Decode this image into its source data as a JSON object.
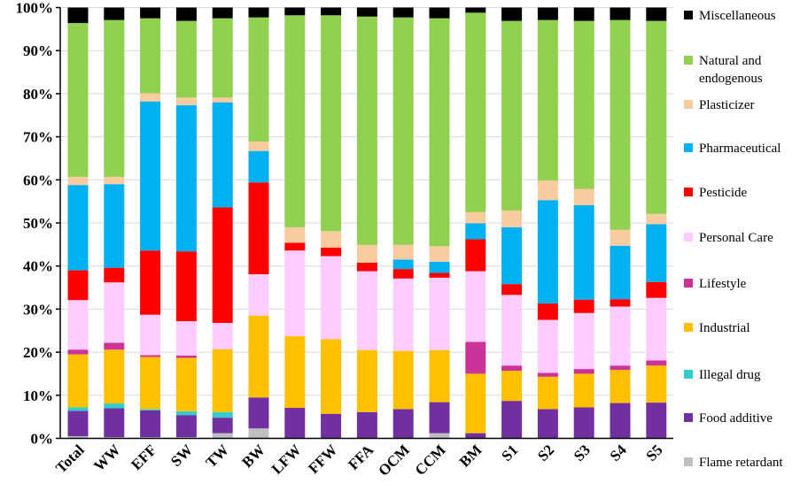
{
  "chart_data": {
    "type": "bar",
    "stacked": true,
    "normalized": true,
    "title": "",
    "xlabel": "",
    "ylabel": "",
    "ylim": [
      0,
      100
    ],
    "yticks": [
      "0%",
      "10%",
      "20%",
      "30%",
      "40%",
      "50%",
      "60%",
      "70%",
      "80%",
      "90%",
      "100%"
    ],
    "grid": true,
    "legend_position": "right",
    "categories": [
      "Total",
      "WW",
      "EFF",
      "SW",
      "TW",
      "BW",
      "LFW",
      "FFW",
      "FFA",
      "OCM",
      "CCM",
      "BM",
      "S1",
      "S2",
      "S3",
      "S4",
      "S5"
    ],
    "series": [
      {
        "name": "Flame retardant",
        "color": "#bfbfbf",
        "values": [
          0.5,
          0.3,
          0.3,
          0.3,
          1.2,
          2.3,
          0,
          0,
          0,
          0,
          1.2,
          0,
          0,
          0,
          0,
          0,
          0
        ]
      },
      {
        "name": "Food additive",
        "color": "#7030a0",
        "values": [
          5.9,
          6.7,
          6.2,
          5.1,
          3.6,
          7.2,
          7.1,
          5.7,
          6.1,
          6.8,
          7.2,
          1.2,
          8.7,
          6.8,
          7.2,
          8.2,
          8.3
        ]
      },
      {
        "name": "Illegal drug",
        "color": "#33cccc",
        "values": [
          0.8,
          1.1,
          0.3,
          0.9,
          1.3,
          0,
          0,
          0,
          0,
          0,
          0,
          0,
          0,
          0,
          0,
          0,
          0
        ]
      },
      {
        "name": "Industrial",
        "color": "#ffc000",
        "values": [
          12.3,
          12.5,
          12.1,
          12.4,
          14.6,
          19.0,
          16.6,
          17.3,
          14.4,
          13.5,
          12.1,
          13.8,
          7.0,
          7.5,
          7.8,
          7.7,
          8.6
        ]
      },
      {
        "name": "Lifestyle",
        "color": "#cc3399",
        "values": [
          1.1,
          1.6,
          0.4,
          0.5,
          0,
          0,
          0,
          0,
          0,
          0,
          0,
          7.4,
          1.2,
          0.9,
          1.1,
          1.0,
          1.2
        ]
      },
      {
        "name": "Personal Care",
        "color": "#ffccff",
        "values": [
          11.5,
          14.0,
          9.4,
          8.0,
          6.1,
          9.6,
          19.9,
          19.3,
          18.3,
          16.8,
          16.8,
          16.4,
          16.4,
          12.3,
          13.0,
          13.7,
          14.5
        ]
      },
      {
        "name": "Pesticide",
        "color": "#ff0000",
        "values": [
          6.9,
          3.4,
          14.9,
          16.2,
          26.8,
          21.3,
          1.8,
          2.0,
          2.0,
          2.2,
          1.1,
          7.4,
          2.5,
          3.8,
          3.1,
          1.7,
          3.7
        ]
      },
      {
        "name": "Pharmaceutical",
        "color": "#00b0f0",
        "values": [
          19.8,
          19.4,
          34.6,
          33.9,
          24.4,
          7.3,
          0,
          0,
          0,
          2.2,
          2.6,
          3.7,
          13.2,
          24.0,
          21.9,
          12.4,
          13.4
        ]
      },
      {
        "name": "Plasticizer",
        "color": "#f8cba0",
        "values": [
          1.9,
          1.7,
          1.9,
          1.8,
          1.1,
          2.2,
          3.6,
          3.8,
          4.1,
          3.4,
          3.6,
          2.6,
          3.9,
          4.5,
          3.8,
          3.7,
          2.4
        ]
      },
      {
        "name": "Natural and endogenous",
        "color": "#92d050",
        "values": [
          35.7,
          36.4,
          17.4,
          17.8,
          18.4,
          28.8,
          49.2,
          50.1,
          53.0,
          52.8,
          52.9,
          46.3,
          44.0,
          37.3,
          39.0,
          48.7,
          44.8
        ]
      },
      {
        "name": "Miscellaneous",
        "color": "#000000",
        "values": [
          3.6,
          2.9,
          2.5,
          3.1,
          2.5,
          2.3,
          1.8,
          1.8,
          2.1,
          2.3,
          2.5,
          1.2,
          3.1,
          2.9,
          3.1,
          2.9,
          3.1
        ]
      }
    ],
    "legend_lines": {
      "Natural and endogenous": [
        "Natural and",
        "endogenous"
      ]
    }
  }
}
